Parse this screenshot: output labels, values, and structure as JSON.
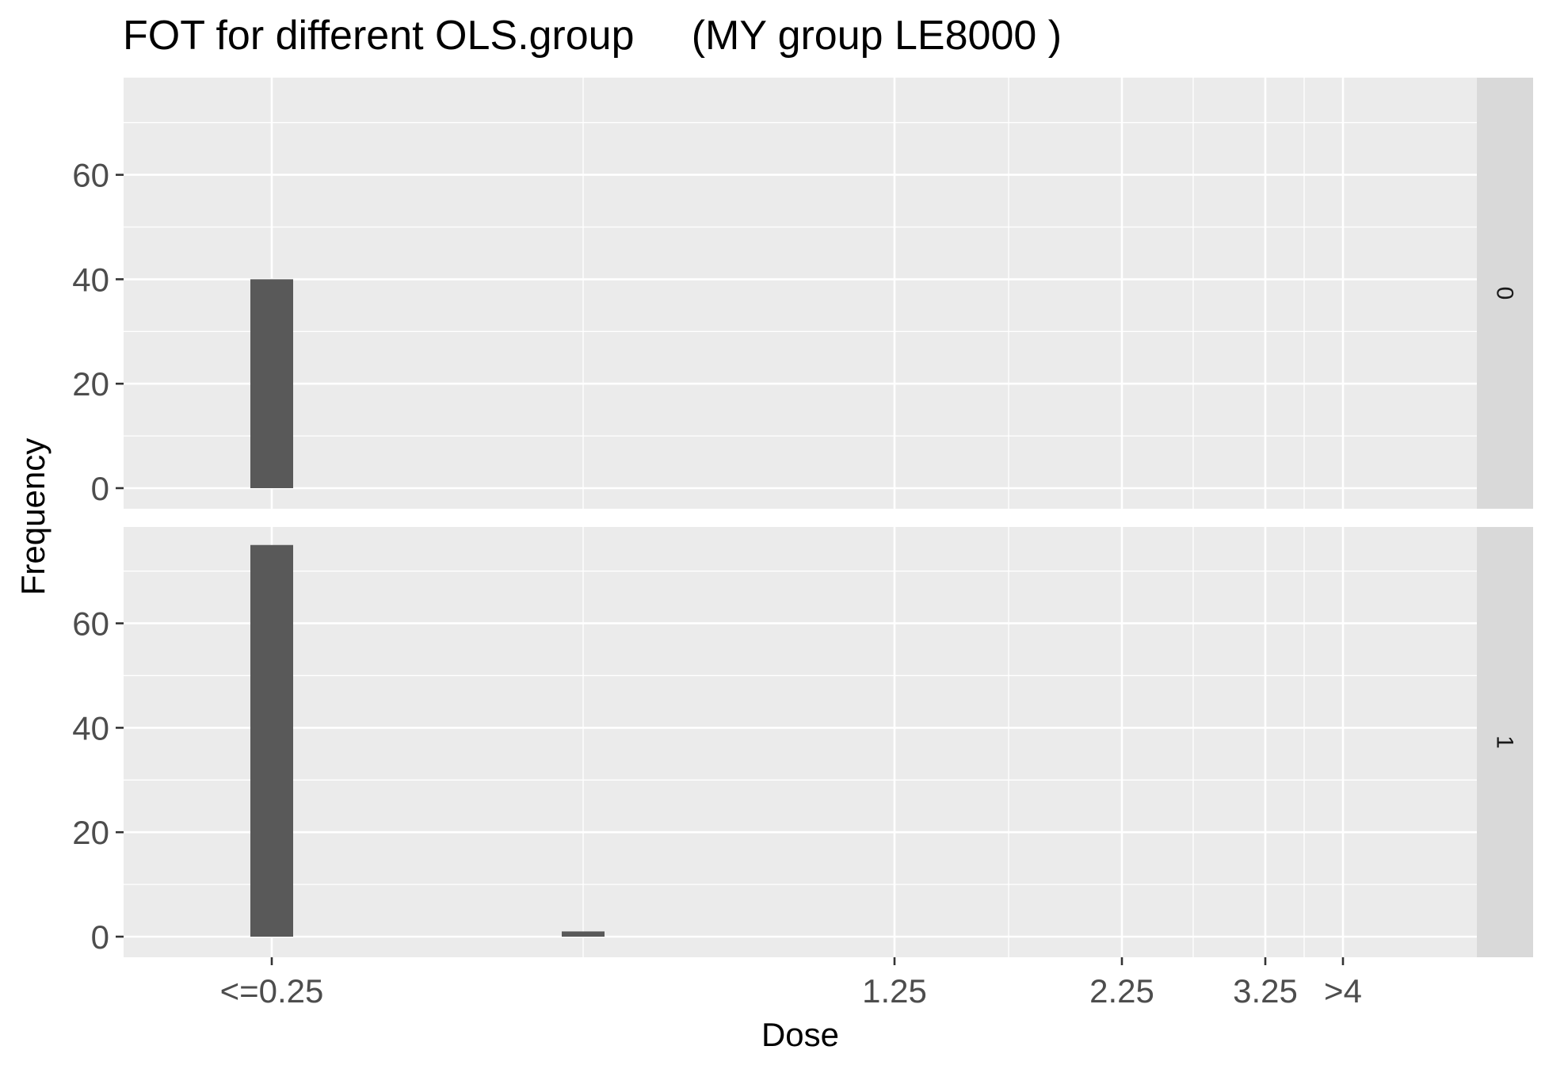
{
  "chart_data": {
    "type": "bar",
    "title": "FOT for different OLS.group     (MY group LE8000 )",
    "xlabel": "Dose",
    "ylabel": "Frequency",
    "x_ticks": [
      {
        "label": "<=0.25",
        "value": 0.25
      },
      {
        "label": "1.25",
        "value": 1.25
      },
      {
        "label": "2.25",
        "value": 2.25
      },
      {
        "label": "3.25",
        "value": 3.25
      },
      {
        "label": ">4",
        "value": 4
      }
    ],
    "y_ticks": [
      0,
      20,
      40,
      60
    ],
    "ylim": [
      0,
      78
    ],
    "grid": true,
    "facet_variable": "OLS.group",
    "panels": [
      {
        "strip": "0",
        "bars": [
          {
            "x": 0.25,
            "value": 40
          }
        ]
      },
      {
        "strip": "1",
        "bars": [
          {
            "x": 0.25,
            "value": 75
          },
          {
            "x": 0.75,
            "value": 1
          }
        ]
      }
    ],
    "colors": {
      "panel_bg": "#ebebeb",
      "strip_bg": "#d9d9d9",
      "grid": "#ffffff",
      "bar": "#595959"
    }
  }
}
